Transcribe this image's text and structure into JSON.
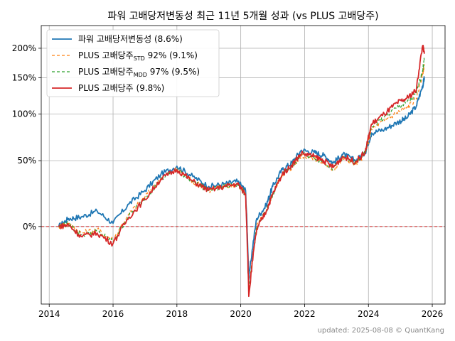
{
  "chart_data": {
    "type": "line",
    "title": "파워 고배당저변동성 최근 11년 5개월 성과 (vs PLUS 고배당주)",
    "xlabel": "",
    "ylabel": "",
    "xlim": [
      2013.75,
      2026.4
    ],
    "ylim": [
      -0.38,
      2.45
    ],
    "y_scale": "log(1+y)",
    "x_ticks": [
      2014,
      2016,
      2018,
      2020,
      2022,
      2024,
      2026
    ],
    "x_tick_labels": [
      "2014",
      "2016",
      "2018",
      "2020",
      "2022",
      "2024",
      "2026"
    ],
    "y_ticks": [
      0,
      0.5,
      1.0,
      1.5,
      2.0
    ],
    "y_tick_labels": [
      "0%",
      "50%",
      "100%",
      "150%",
      "200%"
    ],
    "grid": true,
    "legend_position": "top-left",
    "reference_line": {
      "y": 0,
      "style": "dashed",
      "color": "#d62728"
    },
    "series": [
      {
        "name": "파워 고배당저변동성 (8.6%)",
        "legend_main": "파워 고배당저변동성",
        "legend_sub": "",
        "legend_tail": " (8.6%)",
        "color": "#1f77b4",
        "dash": "",
        "x": [
          2014.3,
          2014.6,
          2015.0,
          2015.5,
          2016.0,
          2016.5,
          2017.0,
          2017.5,
          2018.0,
          2018.5,
          2019.0,
          2019.5,
          2019.9,
          2020.15,
          2020.25,
          2020.5,
          2020.8,
          2021.0,
          2021.3,
          2021.6,
          2021.9,
          2022.3,
          2022.6,
          2022.9,
          2023.2,
          2023.6,
          2023.9,
          2024.1,
          2024.5,
          2024.9,
          2025.2,
          2025.5,
          2025.7,
          2025.75
        ],
        "y": [
          0.0,
          0.05,
          0.06,
          0.1,
          0.02,
          0.15,
          0.25,
          0.38,
          0.45,
          0.36,
          0.28,
          0.3,
          0.32,
          0.25,
          -0.28,
          0.05,
          0.14,
          0.28,
          0.42,
          0.48,
          0.6,
          0.58,
          0.55,
          0.48,
          0.56,
          0.5,
          0.58,
          0.78,
          0.82,
          0.9,
          0.95,
          1.1,
          1.38,
          1.5
        ]
      },
      {
        "name": "PLUS 고배당주STD 92% (9.1%)",
        "legend_main": "PLUS 고배당주",
        "legend_sub": "STD",
        "legend_tail": " 92% (9.1%)",
        "color": "#ff7f0e",
        "dash": "4,3",
        "x": [
          2014.3,
          2014.6,
          2015.0,
          2015.5,
          2016.0,
          2016.5,
          2017.0,
          2017.5,
          2018.0,
          2018.5,
          2019.0,
          2019.5,
          2019.9,
          2020.15,
          2020.25,
          2020.5,
          2020.8,
          2021.0,
          2021.3,
          2021.6,
          2021.9,
          2022.3,
          2022.6,
          2022.9,
          2023.2,
          2023.6,
          2023.9,
          2024.1,
          2024.5,
          2024.9,
          2025.2,
          2025.5,
          2025.7,
          2025.75
        ],
        "y": [
          0.0,
          0.02,
          -0.04,
          -0.02,
          -0.08,
          0.08,
          0.2,
          0.35,
          0.42,
          0.32,
          0.25,
          0.28,
          0.3,
          0.22,
          -0.33,
          0.0,
          0.1,
          0.22,
          0.38,
          0.44,
          0.55,
          0.52,
          0.48,
          0.42,
          0.52,
          0.47,
          0.56,
          0.82,
          0.92,
          1.02,
          1.08,
          1.2,
          1.55,
          1.72
        ]
      },
      {
        "name": "PLUS 고배당주MDD 97% (9.5%)",
        "legend_main": "PLUS 고배당주",
        "legend_sub": "MDD",
        "legend_tail": " 97% (9.5%)",
        "color": "#2ca02c",
        "dash": "4,3",
        "x": [
          2014.3,
          2014.6,
          2015.0,
          2015.5,
          2016.0,
          2016.5,
          2017.0,
          2017.5,
          2018.0,
          2018.5,
          2019.0,
          2019.5,
          2019.9,
          2020.15,
          2020.25,
          2020.5,
          2020.8,
          2021.0,
          2021.3,
          2021.6,
          2021.9,
          2022.3,
          2022.6,
          2022.9,
          2023.2,
          2023.6,
          2023.9,
          2024.1,
          2024.5,
          2024.9,
          2025.2,
          2025.5,
          2025.7,
          2025.75
        ],
        "y": [
          0.0,
          0.015,
          -0.05,
          -0.03,
          -0.09,
          0.07,
          0.19,
          0.34,
          0.42,
          0.32,
          0.25,
          0.28,
          0.3,
          0.22,
          -0.34,
          -0.01,
          0.1,
          0.22,
          0.38,
          0.45,
          0.56,
          0.53,
          0.49,
          0.43,
          0.53,
          0.48,
          0.57,
          0.85,
          0.96,
          1.08,
          1.14,
          1.26,
          1.62,
          1.8
        ]
      },
      {
        "name": "PLUS 고배당주 (9.8%)",
        "legend_main": "PLUS 고배당주",
        "legend_sub": "",
        "legend_tail": " (9.8%)",
        "color": "#d62728",
        "dash": "",
        "x": [
          2014.3,
          2014.6,
          2015.0,
          2015.5,
          2016.0,
          2016.5,
          2017.0,
          2017.5,
          2018.0,
          2018.5,
          2019.0,
          2019.5,
          2019.9,
          2020.15,
          2020.25,
          2020.5,
          2020.8,
          2021.0,
          2021.3,
          2021.6,
          2021.9,
          2022.3,
          2022.6,
          2022.9,
          2023.2,
          2023.6,
          2023.9,
          2024.1,
          2024.5,
          2024.9,
          2025.2,
          2025.5,
          2025.7,
          2025.75
        ],
        "y": [
          0.0,
          0.01,
          -0.06,
          -0.04,
          -0.1,
          0.06,
          0.18,
          0.34,
          0.42,
          0.32,
          0.25,
          0.28,
          0.3,
          0.22,
          -0.35,
          -0.02,
          0.1,
          0.22,
          0.38,
          0.46,
          0.57,
          0.54,
          0.5,
          0.44,
          0.54,
          0.49,
          0.58,
          0.88,
          1.0,
          1.14,
          1.2,
          1.32,
          2.05,
          1.9
        ]
      }
    ]
  },
  "footer": {
    "text": "updated: 2025-08-08 © QuantKang"
  }
}
